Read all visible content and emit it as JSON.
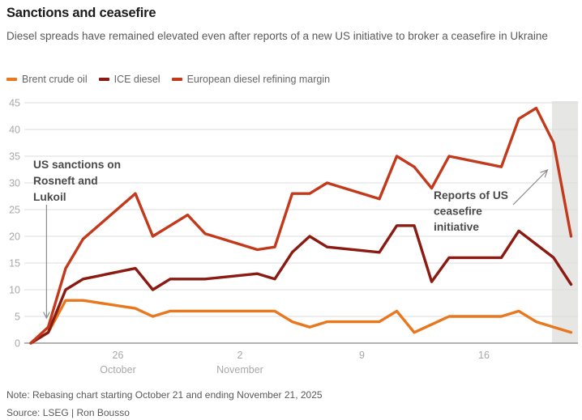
{
  "header": {
    "title": "Sanctions and ceasefire",
    "subtitle": "Diesel spreads have remained elevated even after reports of a new US initiative to broker a ceasefire in Ukraine"
  },
  "chart_data": {
    "type": "line",
    "title": "Sanctions and ceasefire",
    "x": [
      "Oct 21",
      "Oct 22",
      "Oct 23",
      "Oct 24",
      "Oct 27",
      "Oct 28",
      "Oct 29",
      "Oct 30",
      "Oct 31",
      "Nov 3",
      "Nov 4",
      "Nov 5",
      "Nov 6",
      "Nov 7",
      "Nov 10",
      "Nov 11",
      "Nov 12",
      "Nov 13",
      "Nov 14",
      "Nov 17",
      "Nov 18",
      "Nov 19",
      "Nov 20",
      "Nov 21"
    ],
    "x_day_offset": [
      0,
      1,
      2,
      3,
      6,
      7,
      8,
      9,
      10,
      13,
      14,
      15,
      16,
      17,
      20,
      21,
      22,
      23,
      24,
      27,
      28,
      29,
      30,
      31
    ],
    "series": [
      {
        "name": "Brent crude oil",
        "color": "#E8771E",
        "values": [
          0,
          2,
          8,
          8,
          6.5,
          5,
          6,
          6,
          6,
          6,
          6,
          4,
          3,
          4,
          4,
          6,
          2,
          3.5,
          5,
          5,
          6,
          4,
          3,
          2
        ]
      },
      {
        "name": "ICE diesel",
        "color": "#8A1A12",
        "values": [
          0,
          2,
          10,
          12,
          14,
          10,
          12,
          12,
          12,
          13,
          12,
          17,
          20,
          18,
          17,
          22,
          22,
          11.5,
          16,
          16,
          21,
          18.5,
          16,
          11
        ]
      },
      {
        "name": "European diesel refining margin",
        "color": "#C23A1B",
        "values": [
          0,
          3,
          14,
          19.5,
          28,
          20,
          22,
          24,
          20.5,
          17.5,
          18,
          28,
          28,
          30,
          27,
          35,
          33,
          29,
          35,
          33,
          42,
          44,
          37.5,
          20
        ]
      }
    ],
    "ylim": [
      0,
      45
    ],
    "ytick_interval": 5,
    "xticks": [
      {
        "day": 5,
        "label": "26",
        "sublabel": "October"
      },
      {
        "day": 12,
        "label": "2",
        "sublabel": "November"
      },
      {
        "day": 19,
        "label": "9",
        "sublabel": ""
      },
      {
        "day": 26,
        "label": "16",
        "sublabel": ""
      }
    ],
    "shaded_region": {
      "start_day": 29.9,
      "end_day": 31.4,
      "color": "#e6e6e4"
    },
    "annotations": [
      {
        "id": "us-sanctions",
        "lines": [
          "US sanctions on",
          "Rosneft and",
          "Lukoil"
        ]
      },
      {
        "id": "ceasefire-reports",
        "lines": [
          "Reports of US",
          "ceasefire",
          "initiative"
        ]
      }
    ],
    "grid": true,
    "legend_position": "top"
  },
  "footer": {
    "note": "Note: Rebasing chart starting October 21 and ending November 21, 2025",
    "source": "Source: LSEG | Ron Bousso"
  }
}
